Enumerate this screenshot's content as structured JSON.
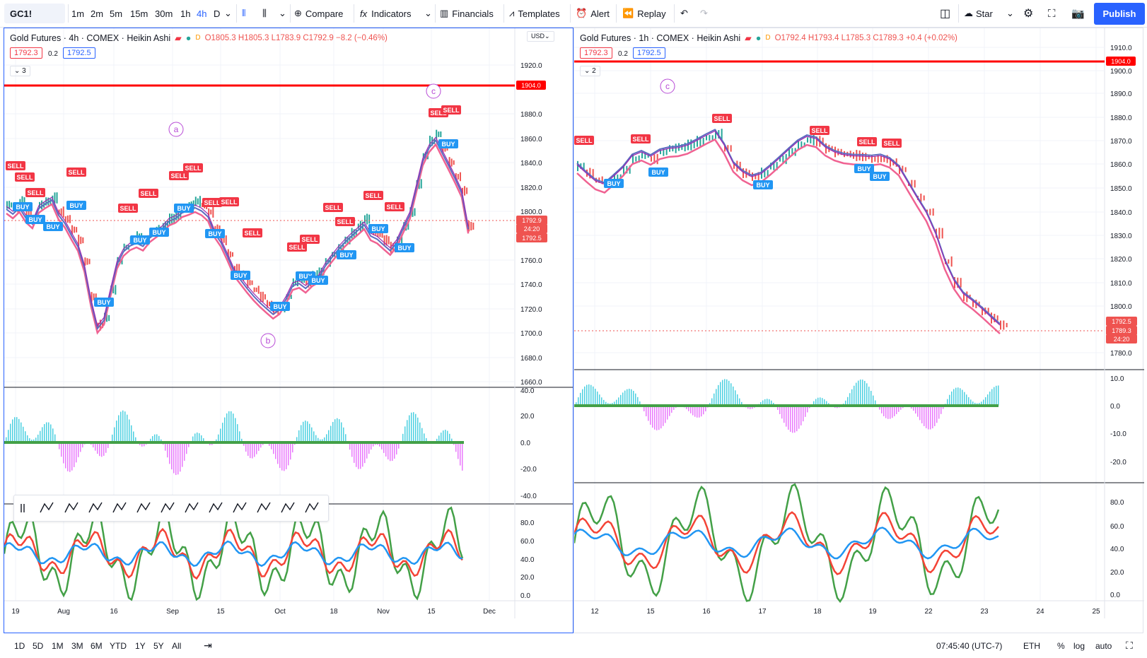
{
  "toolbar": {
    "symbol": "GC1!",
    "intervals": [
      "1m",
      "2m",
      "5m",
      "15m",
      "30m",
      "1h",
      "4h",
      "D"
    ],
    "active_interval": "4h",
    "compare": "Compare",
    "indicators": "Indicators",
    "financials": "Financials",
    "templates": "Templates",
    "alert": "Alert",
    "replay": "Replay",
    "star": "Star",
    "publish": "Publish"
  },
  "left_chart": {
    "title": "Gold Futures · 4h · COMEX · Heikin Ashi",
    "ohlc": "O1805.3 H1805.3 L1783.9 C1792.9 −8.2 (−0.46%)",
    "bid": "1792.3",
    "spread": "0.2",
    "ask": "1792.5",
    "collapse": "3",
    "currency": "USD",
    "price_ticks": [
      "1920.0",
      "1880.0",
      "1860.0",
      "1840.0",
      "1820.0",
      "1800.0",
      "1760.0",
      "1740.0",
      "1720.0",
      "1700.0",
      "1680.0",
      "1660.0"
    ],
    "level_label": "1904.0",
    "last_price": "1792.9",
    "countdown": "24:20",
    "ask_label": "1792.5",
    "osc_ticks": [
      "40.0",
      "20.0",
      "0.0",
      "-20.0",
      "-40.0"
    ],
    "stoch_ticks": [
      "80.0",
      "60.0",
      "40.0",
      "20.0",
      "0.0"
    ],
    "time_ticks": [
      "19",
      "Aug",
      "16",
      "Sep",
      "15",
      "Oct",
      "18",
      "Nov",
      "15",
      "Dec"
    ],
    "waves": [
      "a",
      "b",
      "c"
    ]
  },
  "right_chart": {
    "title": "Gold Futures · 1h · COMEX · Heikin Ashi",
    "ohlc": "O1792.4 H1793.4 L1785.3 C1789.3 +0.4 (+0.02%)",
    "bid": "1792.3",
    "spread": "0.2",
    "ask": "1792.5",
    "collapse": "2",
    "price_ticks": [
      "1910.0",
      "1900.0",
      "1890.0",
      "1880.0",
      "1870.0",
      "1860.0",
      "1850.0",
      "1840.0",
      "1830.0",
      "1820.0",
      "1810.0",
      "1800.0",
      "1780.0"
    ],
    "level_label": "1904.0",
    "ask_label": "1792.5",
    "last_price": "1789.3",
    "countdown": "24:20",
    "osc_ticks": [
      "10.0",
      "0.0",
      "-10.0",
      "-20.0"
    ],
    "stoch_ticks": [
      "80.0",
      "60.0",
      "40.0",
      "20.0",
      "0.0"
    ],
    "time_ticks": [
      "12",
      "15",
      "16",
      "17",
      "18",
      "19",
      "22",
      "23",
      "24",
      "25"
    ],
    "waves": [
      "c"
    ]
  },
  "bottombar": {
    "ranges": [
      "1D",
      "5D",
      "1M",
      "3M",
      "6M",
      "YTD",
      "1Y",
      "5Y",
      "All"
    ],
    "clock": "07:45:40 (UTC-7)",
    "session": "ETH",
    "pct": "%",
    "log": "log",
    "auto": "auto"
  },
  "colors": {
    "accent": "#2962ff",
    "sell": "#f23645",
    "buy": "#2196f3",
    "level": "#ff0000"
  }
}
